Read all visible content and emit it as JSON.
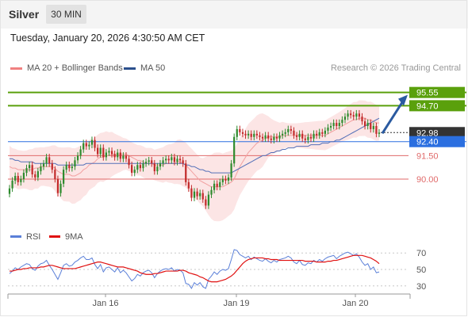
{
  "header": {
    "title": "Silver",
    "timeframe": "30 MIN"
  },
  "datetime": "Tuesday, January 20, 2026 4:30:50 AM CET",
  "credit": "Research © 2026 Trading Central",
  "legend": [
    {
      "label": "MA 20 + Bollinger Bands",
      "color": "#f08080"
    },
    {
      "label": "MA 50",
      "color": "#2b4f8c"
    }
  ],
  "colors": {
    "bull": "#2e8b2e",
    "bear": "#c22a2a",
    "band": "#fce0e0",
    "ma20": "#f2a0a0",
    "ma50": "#5470b8",
    "target": "#5aa00c",
    "pivot": "#2b6fe0",
    "support": "#e06a6a",
    "arrow": "#2a5aa0"
  },
  "chart_data": [
    {
      "type": "candlestick",
      "ylim": [
        87.0,
        96.6
      ],
      "x_ticks": [
        "Jan 16",
        "Jan 19",
        "Jan 20"
      ],
      "levels": [
        {
          "value": 95.55,
          "label": "95.55",
          "style": "target"
        },
        {
          "value": 94.7,
          "label": "94.70",
          "style": "target"
        },
        {
          "value": 92.98,
          "label": "92.98",
          "style": "last"
        },
        {
          "value": 92.4,
          "label": "92.40",
          "style": "pivot"
        },
        {
          "value": 91.5,
          "label": "91.50",
          "style": "support"
        },
        {
          "value": 90.0,
          "label": "90.00",
          "style": "support"
        }
      ],
      "ohlc_close": [
        89.4,
        89.9,
        90.2,
        89.8,
        90.0,
        90.4,
        90.7,
        90.9,
        90.3,
        90.1,
        90.5,
        90.8,
        91.0,
        91.4,
        91.0,
        90.6,
        90.0,
        89.1,
        89.7,
        90.6,
        90.9,
        90.7,
        90.8,
        91.2,
        91.5,
        91.9,
        92.3,
        92.1,
        92.2,
        92.5,
        92.0,
        91.6,
        92.0,
        91.4,
        91.7,
        91.8,
        91.6,
        91.4,
        91.7,
        91.3,
        91.5,
        91.3,
        90.9,
        90.4,
        90.6,
        90.9,
        90.7,
        91.0,
        91.1,
        91.2,
        91.0,
        90.5,
        90.8,
        91.0,
        91.2,
        91.3,
        91.2,
        91.4,
        91.1,
        91.3,
        91.2,
        91.0,
        89.8,
        89.4,
        88.8,
        89.2,
        88.9,
        89.1,
        88.7,
        88.3,
        89.0,
        89.3,
        89.7,
        89.5,
        89.8,
        90.0,
        89.9,
        90.1,
        91.0,
        92.7,
        93.2,
        93.0,
        92.9,
        92.8,
        92.9,
        92.7,
        92.9,
        92.8,
        92.7,
        92.6,
        92.8,
        92.6,
        92.5,
        92.7,
        92.6,
        92.8,
        92.9,
        93.0,
        93.2,
        93.1,
        92.8,
        92.7,
        92.9,
        92.6,
        92.5,
        92.7,
        92.6,
        92.9,
        92.8,
        93.0,
        92.9,
        93.1,
        93.3,
        93.4,
        93.6,
        93.4,
        93.6,
        93.8,
        94.0,
        94.2,
        94.1,
        94.0,
        94.2,
        94.0,
        93.7,
        93.4,
        93.6,
        93.2,
        93.4,
        92.9,
        92.98
      ],
      "ma20": [
        90.8,
        90.7,
        90.7,
        90.6,
        90.6,
        90.6,
        90.6,
        90.6,
        90.6,
        90.7,
        90.7,
        90.8,
        90.8,
        90.8,
        90.8,
        90.8,
        90.7,
        90.5,
        90.4,
        90.3,
        90.3,
        90.3,
        90.2,
        90.2,
        90.3,
        90.4,
        90.6,
        90.7,
        90.9,
        91.0,
        91.1,
        91.3,
        91.4,
        91.4,
        91.5,
        91.5,
        91.6,
        91.6,
        91.6,
        91.6,
        91.6,
        91.6,
        91.5,
        91.4,
        91.3,
        91.2,
        91.2,
        91.1,
        91.0,
        91.0,
        91.0,
        90.9,
        90.9,
        90.9,
        90.9,
        91.0,
        91.0,
        91.0,
        91.0,
        91.1,
        91.1,
        91.0,
        90.9,
        90.7,
        90.5,
        90.3,
        90.1,
        89.9,
        89.8,
        89.7,
        89.6,
        89.5,
        89.5,
        89.5,
        89.5,
        89.5,
        89.6,
        89.7,
        89.8,
        90.0,
        90.4,
        90.8,
        91.1,
        91.4,
        91.7,
        91.9,
        92.1,
        92.3,
        92.4,
        92.5,
        92.6,
        92.7,
        92.7,
        92.7,
        92.7,
        92.7,
        92.8,
        92.8,
        92.8,
        92.8,
        92.8,
        92.8,
        92.8,
        92.8,
        92.8,
        92.8,
        92.8,
        92.8,
        92.8,
        92.8,
        92.8,
        92.8,
        92.9,
        93.0,
        93.1,
        93.2,
        93.3,
        93.4,
        93.5,
        93.6,
        93.7,
        93.8,
        93.8,
        93.9,
        93.9,
        93.9,
        93.8,
        93.8,
        93.7,
        93.6,
        93.6
      ],
      "ma50": [
        91.3,
        91.3,
        91.2,
        91.2,
        91.1,
        91.1,
        91.1,
        91.1,
        91.1,
        91.0,
        91.0,
        91.0,
        91.0,
        91.0,
        91.0,
        91.0,
        91.0,
        90.9,
        90.9,
        90.9,
        90.9,
        90.9,
        90.9,
        90.9,
        90.9,
        90.9,
        90.9,
        91.0,
        91.0,
        91.0,
        91.0,
        91.0,
        91.0,
        91.0,
        91.0,
        91.0,
        91.0,
        91.0,
        91.0,
        91.0,
        91.0,
        91.0,
        91.0,
        91.0,
        91.0,
        91.0,
        91.0,
        91.0,
        91.0,
        91.0,
        91.0,
        91.0,
        91.0,
        91.0,
        91.0,
        91.0,
        91.0,
        91.0,
        91.0,
        91.0,
        91.0,
        91.0,
        90.9,
        90.9,
        90.8,
        90.8,
        90.7,
        90.6,
        90.6,
        90.5,
        90.5,
        90.4,
        90.4,
        90.4,
        90.4,
        90.4,
        90.4,
        90.4,
        90.4,
        90.5,
        90.6,
        90.7,
        90.8,
        90.9,
        91.0,
        91.1,
        91.2,
        91.3,
        91.4,
        91.5,
        91.5,
        91.6,
        91.7,
        91.7,
        91.8,
        91.8,
        91.9,
        91.9,
        92.0,
        92.0,
        92.0,
        92.1,
        92.1,
        92.1,
        92.1,
        92.1,
        92.2,
        92.2,
        92.2,
        92.2,
        92.3,
        92.3,
        92.3,
        92.4,
        92.4,
        92.5,
        92.5,
        92.6,
        92.7,
        92.8,
        92.9,
        93.0,
        93.1,
        93.2,
        93.3,
        93.4,
        93.5,
        93.6,
        93.7,
        93.8,
        93.9
      ]
    },
    {
      "type": "line",
      "title": "RSI",
      "series": [
        {
          "name": "RSI"
        },
        {
          "name": "9MA"
        }
      ],
      "ylim": [
        25,
        75
      ],
      "y_ticks": [
        70,
        50,
        30
      ],
      "rsi": [
        45,
        48,
        52,
        50,
        53,
        55,
        57,
        56,
        51,
        49,
        54,
        57,
        58,
        61,
        55,
        50,
        44,
        38,
        46,
        55,
        57,
        54,
        55,
        59,
        61,
        64,
        66,
        62,
        62,
        64,
        56,
        51,
        56,
        47,
        52,
        53,
        50,
        47,
        52,
        46,
        49,
        46,
        41,
        36,
        39,
        44,
        42,
        46,
        48,
        49,
        46,
        40,
        45,
        48,
        50,
        51,
        50,
        52,
        48,
        50,
        49,
        46,
        33,
        32,
        27,
        34,
        31,
        34,
        29,
        27,
        38,
        42,
        47,
        44,
        48,
        50,
        49,
        51,
        62,
        74,
        73,
        68,
        66,
        64,
        66,
        62,
        65,
        63,
        61,
        60,
        63,
        60,
        58,
        61,
        59,
        62,
        63,
        64,
        66,
        64,
        59,
        57,
        61,
        56,
        55,
        58,
        57,
        61,
        59,
        62,
        60,
        63,
        65,
        66,
        67,
        63,
        66,
        68,
        70,
        71,
        69,
        67,
        69,
        65,
        59,
        55,
        57,
        50,
        53,
        46,
        47
      ],
      "rsi_ma9": [
        48,
        48,
        49,
        50,
        50,
        51,
        51,
        52,
        52,
        52,
        52,
        53,
        53,
        54,
        55,
        55,
        54,
        53,
        52,
        51,
        51,
        51,
        51,
        51,
        52,
        53,
        54,
        55,
        56,
        57,
        58,
        59,
        59,
        58,
        57,
        56,
        55,
        54,
        53,
        53,
        53,
        52,
        51,
        50,
        49,
        48,
        46,
        45,
        44,
        44,
        44,
        45,
        45,
        46,
        47,
        48,
        48,
        48,
        48,
        48,
        49,
        49,
        48,
        46,
        45,
        44,
        43,
        41,
        40,
        38,
        36,
        35,
        35,
        35,
        36,
        37,
        38,
        40,
        42,
        45,
        49,
        53,
        57,
        60,
        62,
        63,
        64,
        64,
        64,
        64,
        63,
        63,
        62,
        62,
        62,
        61,
        61,
        61,
        61,
        61,
        61,
        61,
        61,
        61,
        60,
        60,
        60,
        60,
        59,
        59,
        59,
        59,
        60,
        60,
        61,
        61,
        62,
        63,
        64,
        65,
        66,
        67,
        67,
        67,
        67,
        66,
        65,
        64,
        62,
        60,
        57
      ]
    }
  ]
}
